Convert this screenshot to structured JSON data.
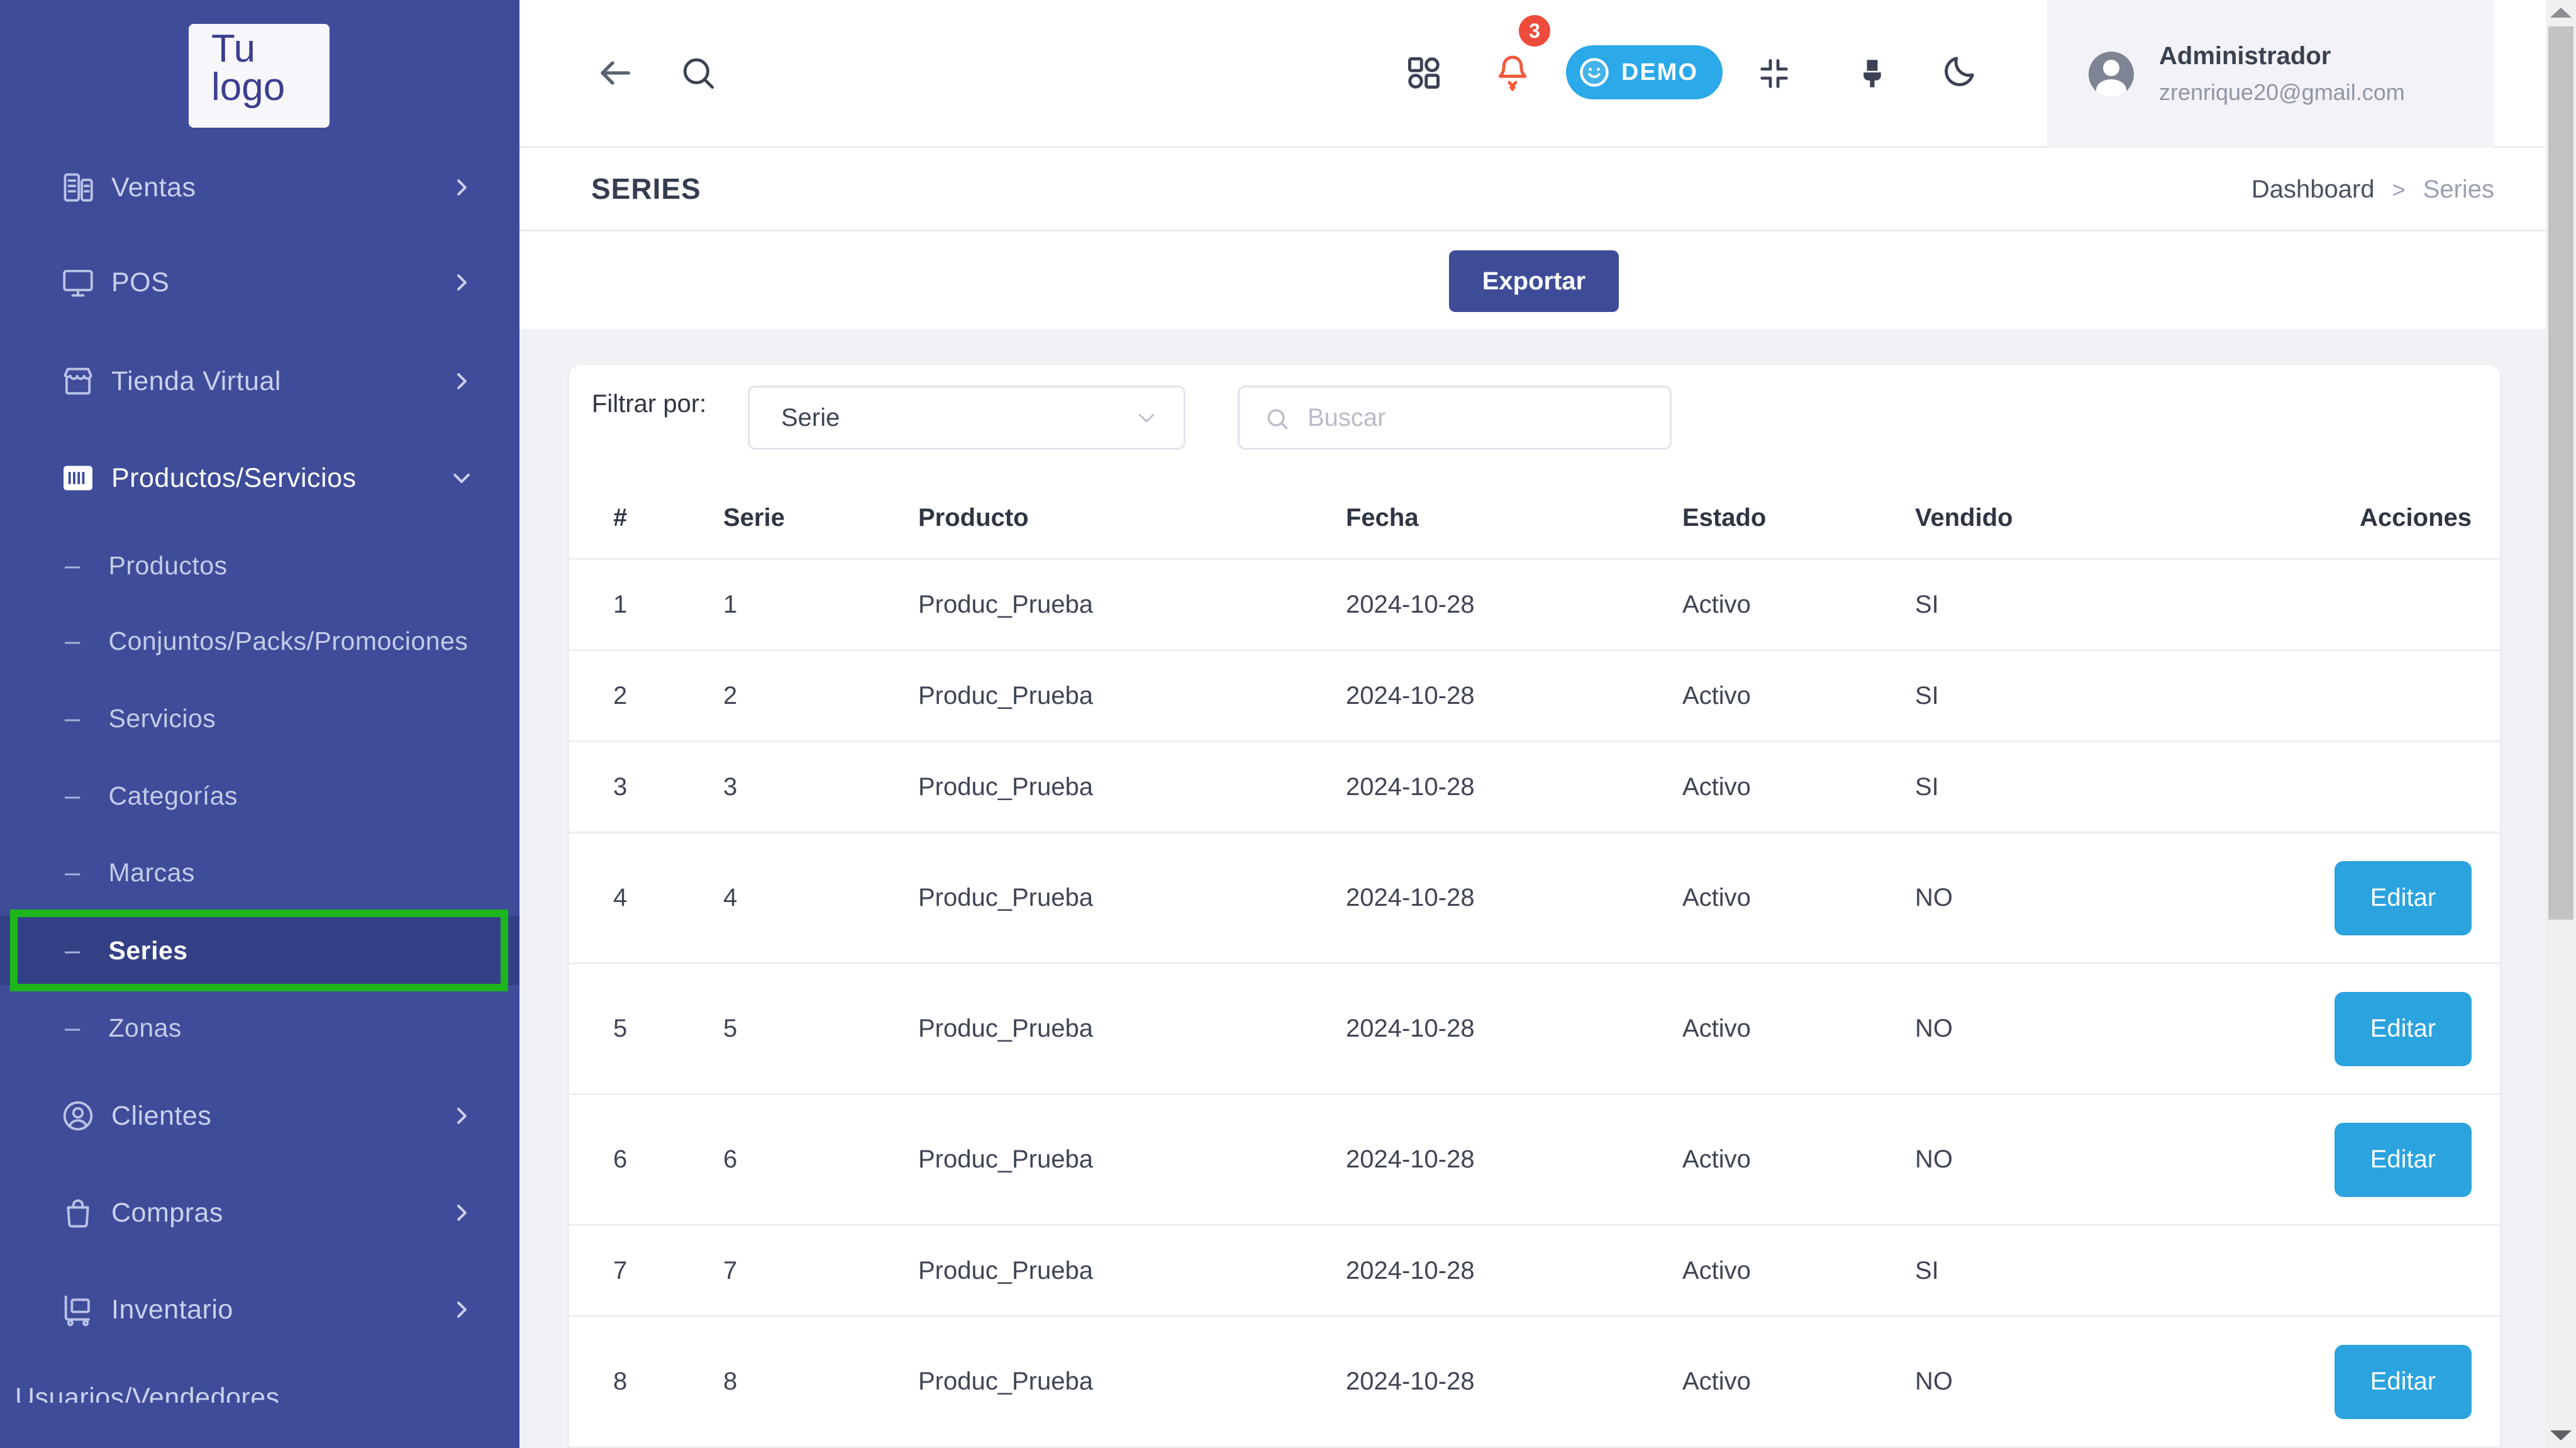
{
  "sidebar": {
    "logo_line1": "Tu",
    "logo_line2": "logo",
    "items": [
      {
        "label": "Ventas",
        "icon": "register-icon",
        "type": "parent",
        "chevron": "right"
      },
      {
        "label": "POS",
        "icon": "monitor-icon",
        "type": "parent",
        "chevron": "right"
      },
      {
        "label": "Tienda Virtual",
        "icon": "store-icon",
        "type": "parent",
        "chevron": "right"
      },
      {
        "label": "Productos/Servicios",
        "icon": "barcode-icon",
        "type": "parent",
        "chevron": "down",
        "expanded": true
      },
      {
        "label": "Productos",
        "type": "sub"
      },
      {
        "label": "Conjuntos/Packs/Promociones",
        "type": "sub"
      },
      {
        "label": "Servicios",
        "type": "sub"
      },
      {
        "label": "Categorías",
        "type": "sub"
      },
      {
        "label": "Marcas",
        "type": "sub"
      },
      {
        "label": "Series",
        "type": "sub",
        "active": true
      },
      {
        "label": "Zonas",
        "type": "sub"
      },
      {
        "label": "Clientes",
        "icon": "user-circle-icon",
        "type": "parent",
        "chevron": "right"
      },
      {
        "label": "Compras",
        "icon": "bag-icon",
        "type": "parent",
        "chevron": "right"
      },
      {
        "label": "Inventario",
        "icon": "cart-icon",
        "type": "parent",
        "chevron": "right"
      },
      {
        "label": "Usuarios/Vendedores",
        "type": "parent",
        "clipped": true
      }
    ]
  },
  "header": {
    "notification_count": "3",
    "demo_label": "DEMO",
    "user": {
      "name": "Administrador",
      "email": "zrenrique20@gmail.com"
    }
  },
  "page": {
    "title": "SERIES",
    "breadcrumb": [
      "Dashboard",
      "Series"
    ],
    "breadcrumb_separator": ">",
    "export_label": "Exportar"
  },
  "filters": {
    "label": "Filtrar por:",
    "select_value": "Serie",
    "search_placeholder": "Buscar"
  },
  "table": {
    "columns": [
      "#",
      "Serie",
      "Producto",
      "Fecha",
      "Estado",
      "Vendido",
      "Acciones"
    ],
    "edit_label": "Editar",
    "rows": [
      {
        "num": "1",
        "serie": "1",
        "producto": "Produc_Prueba",
        "fecha": "2024-10-28",
        "estado": "Activo",
        "vendido": "SI",
        "editable": false
      },
      {
        "num": "2",
        "serie": "2",
        "producto": "Produc_Prueba",
        "fecha": "2024-10-28",
        "estado": "Activo",
        "vendido": "SI",
        "editable": false
      },
      {
        "num": "3",
        "serie": "3",
        "producto": "Produc_Prueba",
        "fecha": "2024-10-28",
        "estado": "Activo",
        "vendido": "SI",
        "editable": false
      },
      {
        "num": "4",
        "serie": "4",
        "producto": "Produc_Prueba",
        "fecha": "2024-10-28",
        "estado": "Activo",
        "vendido": "NO",
        "editable": true
      },
      {
        "num": "5",
        "serie": "5",
        "producto": "Produc_Prueba",
        "fecha": "2024-10-28",
        "estado": "Activo",
        "vendido": "NO",
        "editable": true
      },
      {
        "num": "6",
        "serie": "6",
        "producto": "Produc_Prueba",
        "fecha": "2024-10-28",
        "estado": "Activo",
        "vendido": "NO",
        "editable": true
      },
      {
        "num": "7",
        "serie": "7",
        "producto": "Produc_Prueba",
        "fecha": "2024-10-28",
        "estado": "Activo",
        "vendido": "SI",
        "editable": false
      },
      {
        "num": "8",
        "serie": "8",
        "producto": "Produc_Prueba",
        "fecha": "2024-10-28",
        "estado": "Activo",
        "vendido": "NO",
        "editable": true
      }
    ]
  },
  "colors": {
    "sidebar_bg": "#3f4c99",
    "highlight_green": "#1bb71c",
    "demo_blue": "#2ba9e9",
    "edit_blue": "#2aa3df",
    "export_indigo": "#3e4c98",
    "bell_orange": "#f4593b",
    "badge_red": "#ee4b3c",
    "page_bg": "#f1f1f6",
    "text_dark": "#303646",
    "text_muted": "#9196a4"
  }
}
